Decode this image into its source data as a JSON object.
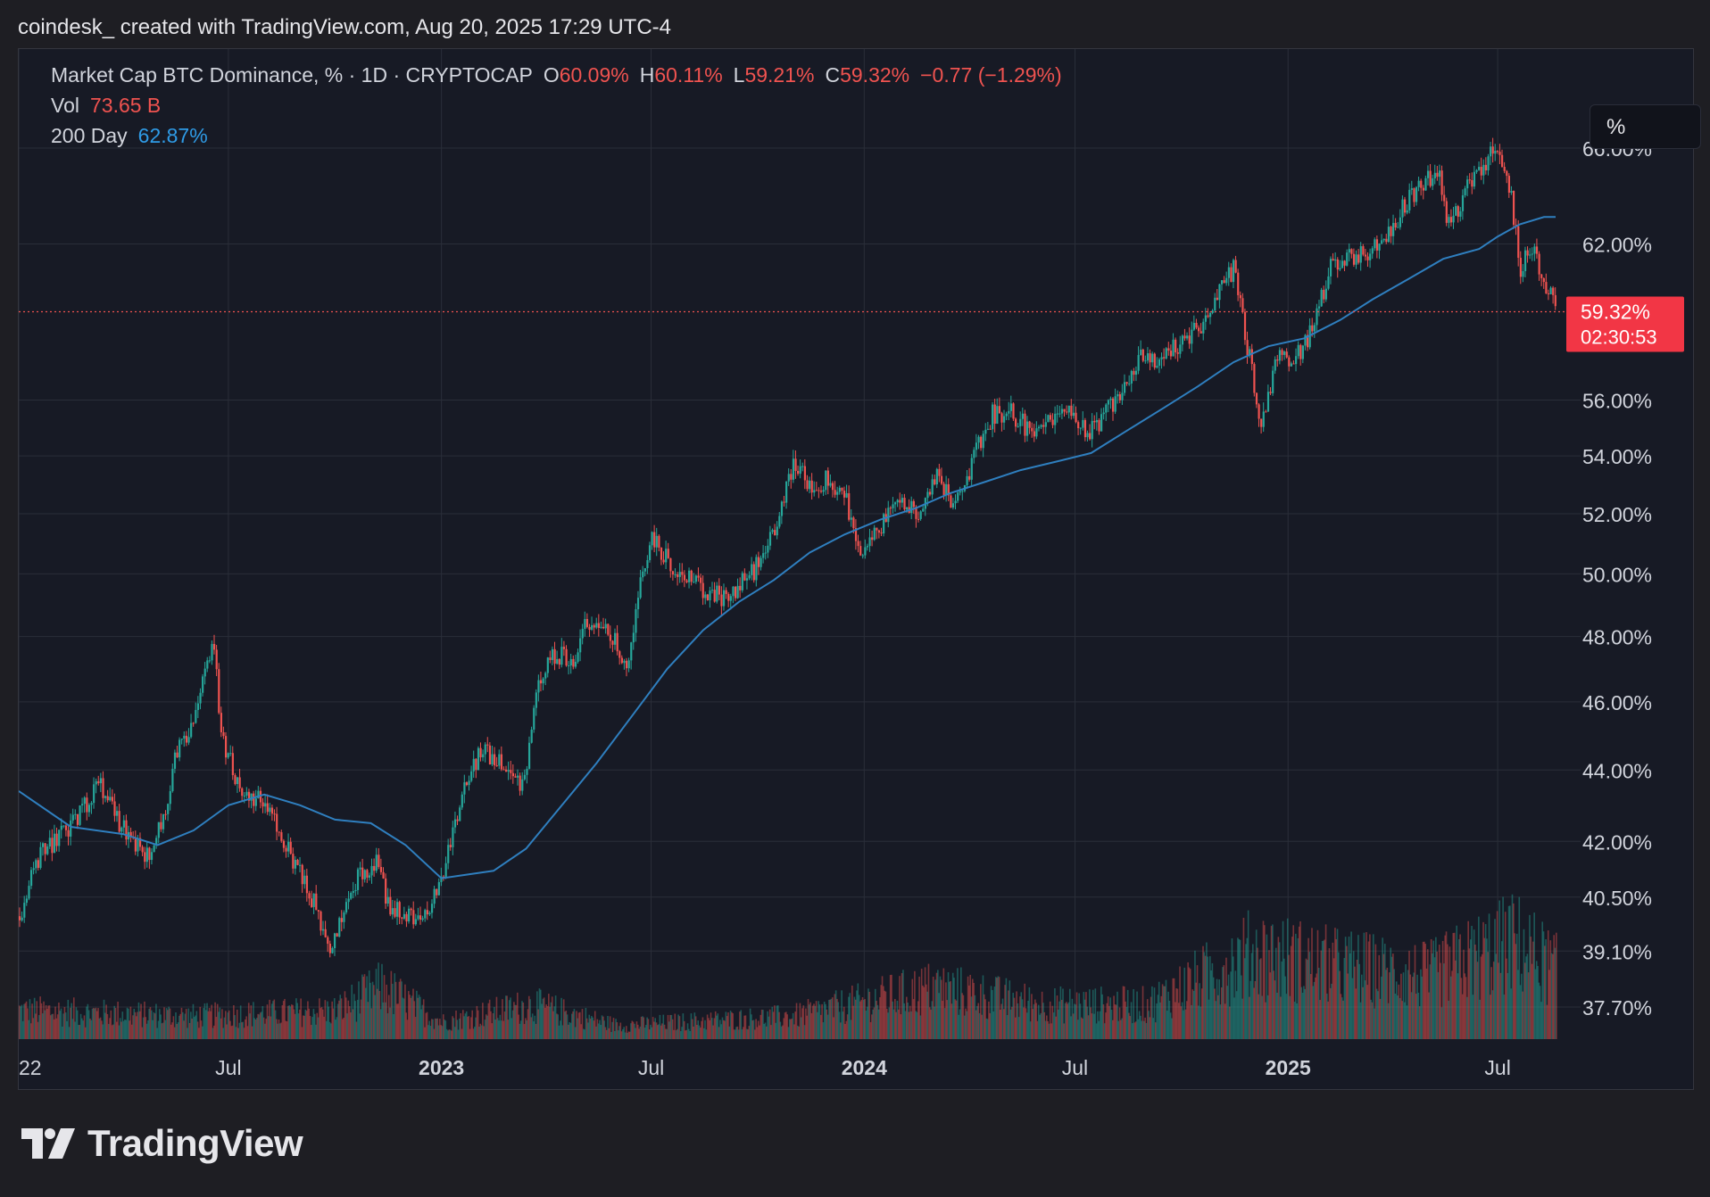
{
  "header": {
    "caption": "coindesk_ created with TradingView.com, Aug 20, 2025 17:29 UTC-4"
  },
  "legend": {
    "symbol": "Market Cap BTC Dominance, % · 1D · CRYPTOCAP",
    "open_label": "O",
    "open": "60.09%",
    "high_label": "H",
    "high": "60.11%",
    "low_label": "L",
    "low": "59.21%",
    "close_label": "C",
    "close": "59.32%",
    "change": "−0.77 (−1.29%)",
    "vol_label": "Vol",
    "vol": "73.65 B",
    "ma_label": "200 Day",
    "ma": "62.87%"
  },
  "toolbar": {
    "unit_button": "%"
  },
  "price_tag": {
    "value": "59.32%",
    "countdown": "02:30:53"
  },
  "footer": {
    "brand": "TradingView"
  },
  "colors": {
    "up": "#26a69a",
    "down": "#ef5350",
    "ma": "#2f7fbf",
    "background": "#171a25",
    "grid": "#2a2e39",
    "price_line": "#ef5350"
  },
  "chart_data": {
    "type": "candlestick",
    "symbol": "Market Cap BTC Dominance",
    "interval": "1D",
    "scale": "log",
    "grid": true,
    "y_ticks": [
      "66.00%",
      "62.00%",
      "56.00%",
      "54.00%",
      "52.00%",
      "50.00%",
      "48.00%",
      "46.00%",
      "44.00%",
      "42.00%",
      "40.50%",
      "39.10%",
      "37.70%"
    ],
    "x_ticks": [
      "22",
      "Jul",
      "2023",
      "Jul",
      "2024",
      "Jul",
      "2025",
      "Jul"
    ],
    "x_range": [
      "2022-01-01",
      "2025-08-20"
    ],
    "last_price": 59.32,
    "dominance_path": [
      [
        "2022-01-01",
        40.0
      ],
      [
        "2022-01-15",
        41.5
      ],
      [
        "2022-02-01",
        42.0
      ],
      [
        "2022-02-20",
        42.6
      ],
      [
        "2022-03-10",
        43.6
      ],
      [
        "2022-04-01",
        42.3
      ],
      [
        "2022-04-20",
        41.6
      ],
      [
        "2022-05-05",
        42.5
      ],
      [
        "2022-05-15",
        44.5
      ],
      [
        "2022-06-01",
        45.5
      ],
      [
        "2022-06-18",
        47.8
      ],
      [
        "2022-06-24",
        45.0
      ],
      [
        "2022-07-10",
        43.5
      ],
      [
        "2022-08-01",
        43.0
      ],
      [
        "2022-08-20",
        41.8
      ],
      [
        "2022-09-10",
        40.5
      ],
      [
        "2022-09-28",
        39.1
      ],
      [
        "2022-10-10",
        40.5
      ],
      [
        "2022-10-25",
        41.2
      ],
      [
        "2022-11-05",
        41.4
      ],
      [
        "2022-11-15",
        40.3
      ],
      [
        "2022-11-28",
        40.0
      ],
      [
        "2022-12-10",
        40.0
      ],
      [
        "2022-12-28",
        40.6
      ],
      [
        "2023-01-05",
        41.5
      ],
      [
        "2023-01-20",
        43.5
      ],
      [
        "2023-02-05",
        44.6
      ],
      [
        "2023-02-25",
        44.0
      ],
      [
        "2023-03-12",
        43.6
      ],
      [
        "2023-03-25",
        46.5
      ],
      [
        "2023-04-05",
        47.5
      ],
      [
        "2023-04-25",
        47.3
      ],
      [
        "2023-05-05",
        48.5
      ],
      [
        "2023-05-25",
        48.0
      ],
      [
        "2023-06-12",
        47.2
      ],
      [
        "2023-06-20",
        49.5
      ],
      [
        "2023-06-30",
        51.2
      ],
      [
        "2023-07-10",
        50.6
      ],
      [
        "2023-07-25",
        50.0
      ],
      [
        "2023-08-15",
        49.5
      ],
      [
        "2023-09-05",
        49.2
      ],
      [
        "2023-09-20",
        49.8
      ],
      [
        "2023-10-05",
        50.5
      ],
      [
        "2023-10-20",
        52.0
      ],
      [
        "2023-11-01",
        53.8
      ],
      [
        "2023-11-15",
        53.0
      ],
      [
        "2023-12-01",
        53.2
      ],
      [
        "2023-12-15",
        52.5
      ],
      [
        "2023-12-28",
        50.8
      ],
      [
        "2024-01-12",
        51.4
      ],
      [
        "2024-01-30",
        52.5
      ],
      [
        "2024-02-15",
        52.0
      ],
      [
        "2024-03-01",
        53.3
      ],
      [
        "2024-03-15",
        52.5
      ],
      [
        "2024-04-01",
        53.6
      ],
      [
        "2024-04-20",
        55.5
      ],
      [
        "2024-05-05",
        55.6
      ],
      [
        "2024-05-25",
        54.8
      ],
      [
        "2024-06-10",
        55.2
      ],
      [
        "2024-06-25",
        55.9
      ],
      [
        "2024-07-10",
        54.8
      ],
      [
        "2024-07-25",
        55.4
      ],
      [
        "2024-08-10",
        56.5
      ],
      [
        "2024-08-25",
        57.7
      ],
      [
        "2024-09-10",
        57.5
      ],
      [
        "2024-09-25",
        58.0
      ],
      [
        "2024-10-10",
        58.5
      ],
      [
        "2024-10-25",
        59.0
      ],
      [
        "2024-11-05",
        60.5
      ],
      [
        "2024-11-15",
        61.0
      ],
      [
        "2024-11-28",
        57.5
      ],
      [
        "2024-12-08",
        54.9
      ],
      [
        "2024-12-20",
        57.5
      ],
      [
        "2025-01-05",
        57.5
      ],
      [
        "2025-01-20",
        58.5
      ],
      [
        "2025-02-05",
        61.0
      ],
      [
        "2025-02-20",
        61.5
      ],
      [
        "2025-03-10",
        61.7
      ],
      [
        "2025-03-25",
        62.0
      ],
      [
        "2025-04-10",
        63.5
      ],
      [
        "2025-04-25",
        64.5
      ],
      [
        "2025-05-10",
        65.0
      ],
      [
        "2025-05-20",
        62.5
      ],
      [
        "2025-06-01",
        64.2
      ],
      [
        "2025-06-20",
        65.5
      ],
      [
        "2025-06-28",
        66.0
      ],
      [
        "2025-07-10",
        64.5
      ],
      [
        "2025-07-20",
        61.0
      ],
      [
        "2025-07-30",
        62.0
      ],
      [
        "2025-08-10",
        60.5
      ],
      [
        "2025-08-20",
        59.32
      ]
    ],
    "ma200_path": [
      [
        "2022-01-01",
        43.4
      ],
      [
        "2022-02-15",
        42.4
      ],
      [
        "2022-04-01",
        42.2
      ],
      [
        "2022-05-01",
        41.9
      ],
      [
        "2022-06-01",
        42.3
      ],
      [
        "2022-07-01",
        43.0
      ],
      [
        "2022-08-01",
        43.3
      ],
      [
        "2022-09-01",
        43.0
      ],
      [
        "2022-10-01",
        42.6
      ],
      [
        "2022-11-01",
        42.5
      ],
      [
        "2022-12-01",
        41.9
      ],
      [
        "2023-01-01",
        41.0
      ],
      [
        "2023-02-15",
        41.2
      ],
      [
        "2023-03-15",
        41.8
      ],
      [
        "2023-04-15",
        43.0
      ],
      [
        "2023-05-15",
        44.2
      ],
      [
        "2023-06-15",
        45.6
      ],
      [
        "2023-07-15",
        47.0
      ],
      [
        "2023-08-15",
        48.2
      ],
      [
        "2023-09-15",
        49.1
      ],
      [
        "2023-10-15",
        49.8
      ],
      [
        "2023-11-15",
        50.7
      ],
      [
        "2023-12-15",
        51.3
      ],
      [
        "2024-01-15",
        51.8
      ],
      [
        "2024-02-15",
        52.2
      ],
      [
        "2024-03-15",
        52.7
      ],
      [
        "2024-04-15",
        53.1
      ],
      [
        "2024-05-15",
        53.5
      ],
      [
        "2024-06-15",
        53.8
      ],
      [
        "2024-07-15",
        54.1
      ],
      [
        "2024-08-15",
        54.9
      ],
      [
        "2024-09-15",
        55.7
      ],
      [
        "2024-10-15",
        56.5
      ],
      [
        "2024-11-15",
        57.4
      ],
      [
        "2024-12-15",
        58.0
      ],
      [
        "2025-01-15",
        58.3
      ],
      [
        "2025-02-15",
        59.0
      ],
      [
        "2025-03-15",
        59.8
      ],
      [
        "2025-04-15",
        60.6
      ],
      [
        "2025-05-15",
        61.4
      ],
      [
        "2025-06-15",
        61.8
      ],
      [
        "2025-07-01",
        62.3
      ],
      [
        "2025-07-20",
        62.8
      ],
      [
        "2025-08-10",
        63.1
      ],
      [
        "2025-08-20",
        63.1
      ]
    ],
    "volume_profile": [
      [
        "2022-01-01",
        0.25
      ],
      [
        "2022-06-01",
        0.2
      ],
      [
        "2022-10-01",
        0.25
      ],
      [
        "2022-11-10",
        0.45
      ],
      [
        "2023-01-01",
        0.15
      ],
      [
        "2023-03-20",
        0.3
      ],
      [
        "2023-06-01",
        0.12
      ],
      [
        "2023-11-01",
        0.2
      ],
      [
        "2024-03-01",
        0.45
      ],
      [
        "2024-06-01",
        0.3
      ],
      [
        "2024-09-01",
        0.3
      ],
      [
        "2024-12-01",
        0.75
      ],
      [
        "2025-02-01",
        0.65
      ],
      [
        "2025-05-01",
        0.55
      ],
      [
        "2025-07-15",
        0.85
      ],
      [
        "2025-08-20",
        0.6
      ]
    ]
  }
}
